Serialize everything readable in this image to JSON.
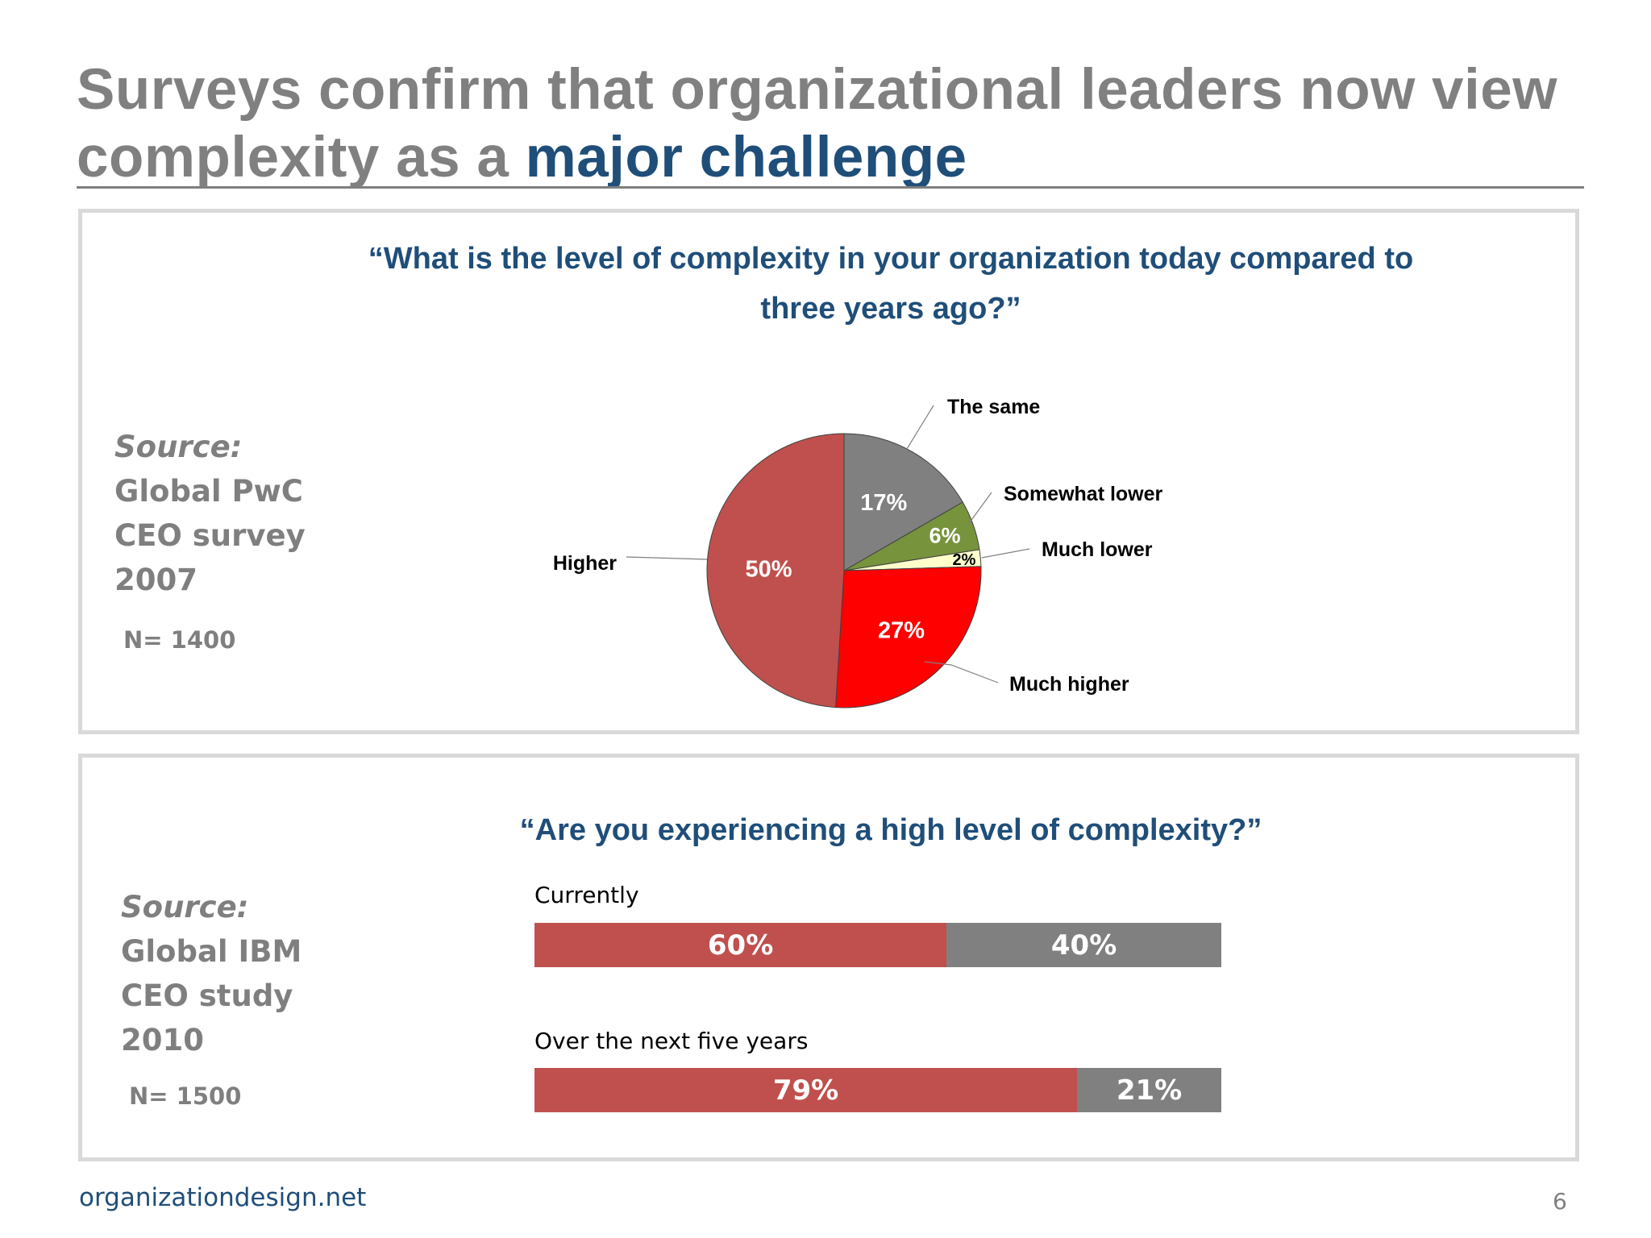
{
  "slide": {
    "title_main": "Surveys confirm that organizational leaders now view complexity as a ",
    "title_accent": "major challenge",
    "footer": "organizationdesign.net",
    "page_number": "6"
  },
  "survey1": {
    "question": "“What is the level of complexity in your organization today compared to three years ago?”",
    "source_label": "Source:",
    "source_name": "Global PwC CEO survey 2007",
    "n": "N= 1400"
  },
  "survey2": {
    "question": "“Are you experiencing a high level of complexity?”",
    "source_label": "Source:",
    "source_name": "Global IBM CEO study 2010",
    "n": "N= 1500"
  },
  "chart_data": [
    {
      "type": "pie",
      "slices": [
        {
          "label": "The same",
          "value": 17,
          "value_label": "17%",
          "color": "#808080"
        },
        {
          "label": "Somewhat lower",
          "value": 6,
          "value_label": "6%",
          "color": "#77933c"
        },
        {
          "label": "Much lower",
          "value": 2,
          "value_label": "2%",
          "color": "#ffffcc"
        },
        {
          "label": "Much higher",
          "value": 27,
          "value_label": "27%",
          "color": "#ff0000"
        },
        {
          "label": "Higher",
          "value": 50,
          "value_label": "50%",
          "color": "#c0504d"
        }
      ]
    },
    {
      "type": "bar",
      "orientation": "horizontal-stacked",
      "categories": [
        "Currently",
        "Over the next five years"
      ],
      "series": [
        {
          "values": [
            60,
            79
          ],
          "value_labels": [
            "60%",
            "79%"
          ],
          "color": "#c0504d"
        },
        {
          "values": [
            40,
            21
          ],
          "value_labels": [
            "40%",
            "21%"
          ],
          "color": "#808080"
        }
      ]
    }
  ]
}
